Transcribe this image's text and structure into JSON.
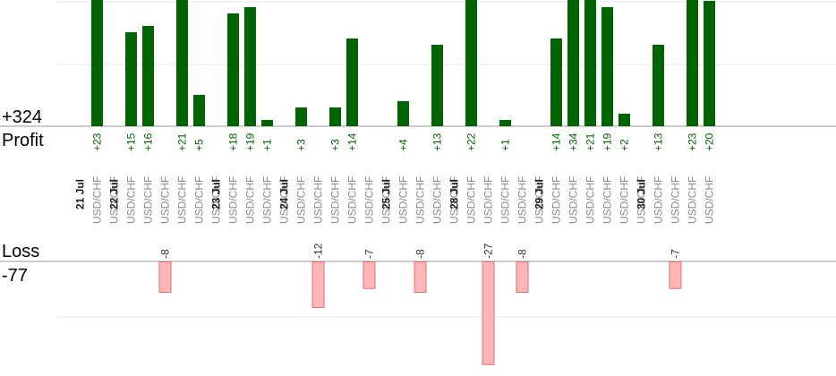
{
  "chart_data": {
    "type": "bar",
    "profit_label": "Profit",
    "loss_label": "Loss",
    "profit_total": "+324",
    "loss_total": "-77",
    "colors": {
      "profit": "#006400",
      "profit_text": "#006400",
      "loss": "#ffb6b6",
      "loss_stroke": "#e07070",
      "loss_text": "#333333",
      "grid": "#e6e6e6",
      "baseline": "#999999"
    },
    "profit_ylim": [
      0,
      20
    ],
    "loss_ylim": [
      0,
      27
    ],
    "dates": [
      "21 Jul",
      "22 Jul",
      "23 Jul",
      "24 Jul",
      "25 Jul",
      "28 Jul",
      "29 Jul",
      "30 Jul"
    ],
    "trades": [
      {
        "pair": "USD/CHF",
        "date": "21 Jul",
        "value": 23
      },
      {
        "pair": "USD/CHF",
        "value": null
      },
      {
        "pair": "USD/CHF",
        "date": "22 Jul",
        "value": 15
      },
      {
        "pair": "USD/CHF",
        "value": 16
      },
      {
        "pair": "USD/CHF",
        "value": -8
      },
      {
        "pair": "USD/CHF",
        "value": 21
      },
      {
        "pair": "USD/CHF",
        "value": 5
      },
      {
        "pair": "USD/CHF",
        "value": null
      },
      {
        "pair": "USD/CHF",
        "date": "23 Jul",
        "value": 18
      },
      {
        "pair": "USD/CHF",
        "value": 19
      },
      {
        "pair": "USD/CHF",
        "value": 1
      },
      {
        "pair": "USD/CHF",
        "value": null
      },
      {
        "pair": "USD/CHF",
        "date": "24 Jul",
        "value": 3
      },
      {
        "pair": "USD/CHF",
        "value": -12
      },
      {
        "pair": "USD/CHF",
        "value": 3
      },
      {
        "pair": "USD/CHF",
        "value": 14
      },
      {
        "pair": "USD/CHF",
        "value": -7
      },
      {
        "pair": "USD/CHF",
        "value": null
      },
      {
        "pair": "USD/CHF",
        "date": "25 Jul",
        "value": 4
      },
      {
        "pair": "USD/CHF",
        "value": -8
      },
      {
        "pair": "USD/CHF",
        "value": 13
      },
      {
        "pair": "USD/CHF",
        "value": null
      },
      {
        "pair": "USD/CHF",
        "date": "28 Jul",
        "value": 22
      },
      {
        "pair": "USD/CHF",
        "value": -27
      },
      {
        "pair": "USD/CHF",
        "value": 1
      },
      {
        "pair": "USD/CHF",
        "value": -8
      },
      {
        "pair": "USD/CHF",
        "value": null
      },
      {
        "pair": "USD/CHF",
        "date": "29 Jul",
        "value": 14
      },
      {
        "pair": "USD/CHF",
        "value": 34
      },
      {
        "pair": "USD/CHF",
        "value": 21
      },
      {
        "pair": "USD/CHF",
        "value": 19
      },
      {
        "pair": "USD/CHF",
        "value": 2
      },
      {
        "pair": "USD/CHF",
        "value": null
      },
      {
        "pair": "USD/CHF",
        "date": "30 Jul",
        "value": 13
      },
      {
        "pair": "USD/CHF",
        "value": -7
      },
      {
        "pair": "USD/CHF",
        "value": 23
      },
      {
        "pair": "USD/CHF",
        "value": 20
      }
    ]
  }
}
